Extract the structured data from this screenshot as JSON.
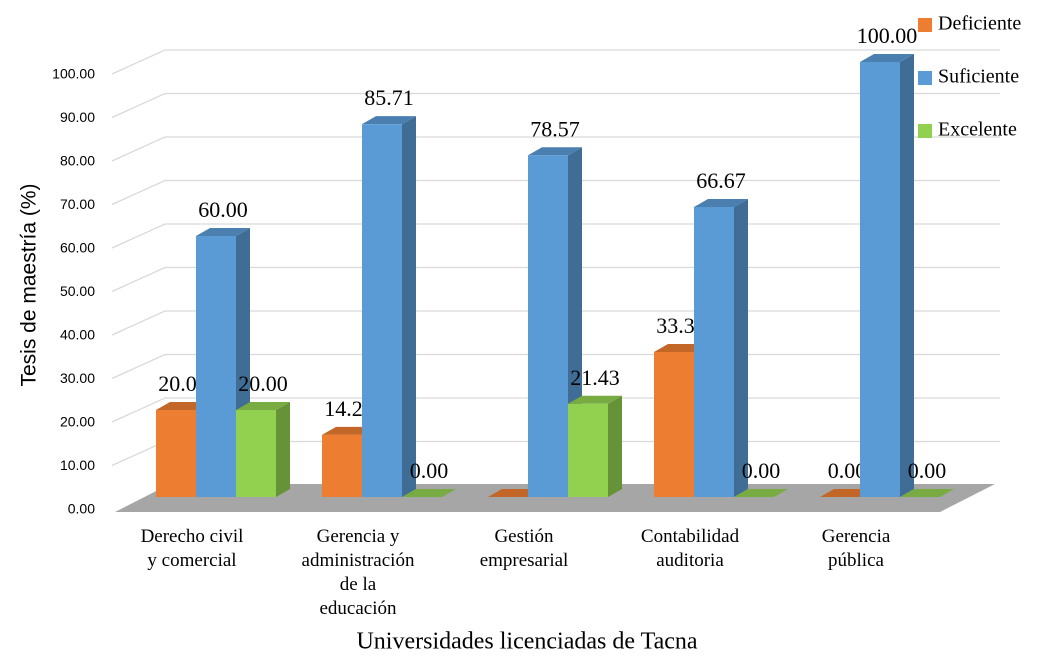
{
  "chart_data": {
    "type": "bar3d",
    "x_label": "Universidades licenciadas de Tacna",
    "y_label": "Tesis de maestría (%)",
    "categories": [
      "Derecho civil y comercial",
      "Gerencia y administración de la educación",
      "Gestión empresarial",
      "Contabilidad auditoria",
      "Gerencia pública"
    ],
    "series": [
      {
        "name": "Deficiente",
        "color": "#ed7d31",
        "values": [
          20,
          14.29,
          0,
          33.33,
          0
        ],
        "value_labels": [
          "20.00",
          "14.29",
          "",
          "33.33",
          "0.00"
        ]
      },
      {
        "name": "Suficiente",
        "color": "#5b9bd5",
        "values": [
          60,
          85.71,
          78.57,
          66.67,
          100
        ],
        "value_labels": [
          "60.00",
          "85.71",
          "78.57",
          "66.67",
          "100.00"
        ]
      },
      {
        "name": "Excelente",
        "color": "#92d050",
        "values": [
          20,
          0,
          21.43,
          0,
          0
        ],
        "value_labels": [
          "20.00",
          "0.00",
          "21.43",
          "0.00",
          "0.00"
        ]
      }
    ],
    "ylim": [
      0,
      100
    ],
    "yticks": [
      {
        "value": 0,
        "label": "0.00"
      },
      {
        "value": 10,
        "label": "10.00"
      },
      {
        "value": 20,
        "label": "20.00"
      },
      {
        "value": 30,
        "label": "30.00"
      },
      {
        "value": 40,
        "label": "40.00"
      },
      {
        "value": 50,
        "label": "50.00"
      },
      {
        "value": 60,
        "label": "60.00"
      },
      {
        "value": 70,
        "label": "70.00"
      },
      {
        "value": 80,
        "label": "80.00"
      },
      {
        "value": 90,
        "label": "90.00"
      },
      {
        "value": 100,
        "label": "100.00"
      }
    ],
    "grid": true,
    "legend": "top-right"
  }
}
